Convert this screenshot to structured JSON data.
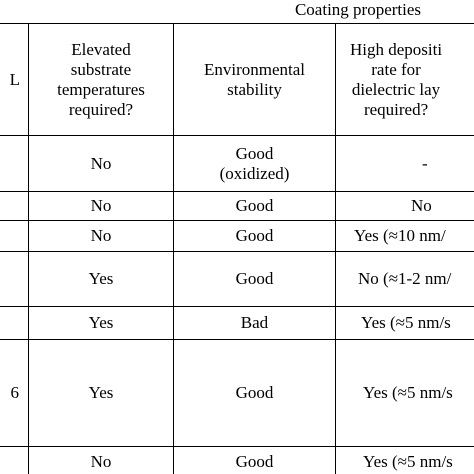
{
  "group_header": "Coating properties",
  "columns": [
    {
      "fragment": "L",
      "label": ""
    },
    {
      "label": "Elevated\nsubstrate\ntemperatures\nrequired?"
    },
    {
      "label": "Environmental\nstability"
    },
    {
      "label": "High depositi\nrate for\ndielectric lay\nrequired?"
    }
  ],
  "rows": [
    {
      "c0": "",
      "c1": "No",
      "c2": "Good\n(oxidized)",
      "c3": "-"
    },
    {
      "c0": "",
      "c1": "No",
      "c2": "Good",
      "c3": "No"
    },
    {
      "c0": "",
      "c1": "No",
      "c2": "Good",
      "c3": "Yes (≈10 nm/"
    },
    {
      "c0": "",
      "c1": "Yes",
      "c2": "Good",
      "c3": "No (≈1-2 nm/"
    },
    {
      "c0": "",
      "c1": "Yes",
      "c2": "Bad",
      "c3": "Yes (≈5 nm/s"
    },
    {
      "c0": "6",
      "c1": "Yes",
      "c2": "Good",
      "c3": "Yes (≈5 nm/s"
    },
    {
      "c0": "",
      "c1": "No",
      "c2": "Good",
      "c3": "Yes (≈5 nm/s"
    }
  ]
}
